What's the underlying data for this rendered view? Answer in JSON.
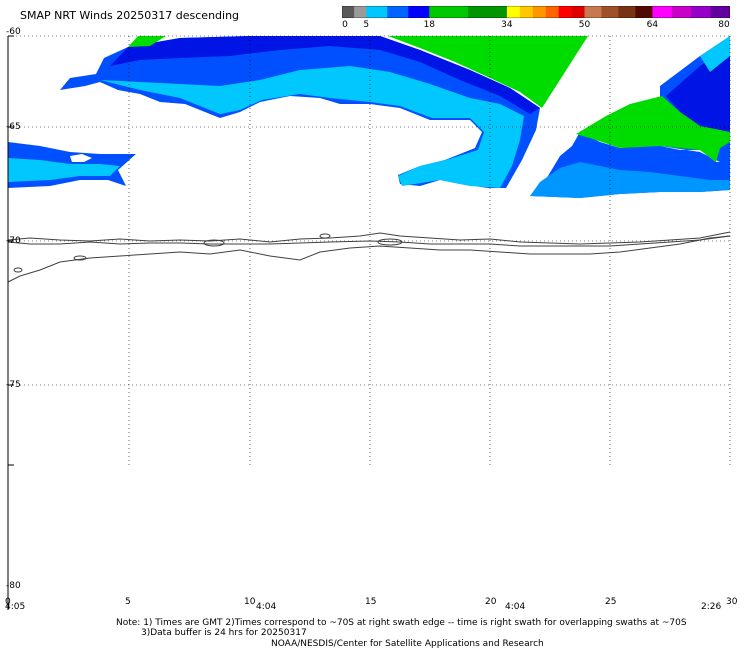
{
  "title": "SMAP NRT Winds  20250317 descending",
  "legend": {
    "ticks": [
      "0",
      "5",
      "18",
      "34",
      "50",
      "64",
      "80"
    ],
    "segments": [
      {
        "from": 0,
        "to": 5,
        "colors": [
          "#5a5a5a",
          "#9a9a9a"
        ]
      },
      {
        "from": 5,
        "to": 18,
        "colors": [
          "#00c8ff",
          "#0064ff",
          "#0000ff"
        ]
      },
      {
        "from": 18,
        "to": 34,
        "colors": [
          "#00c800",
          "#009600"
        ]
      },
      {
        "from": 34,
        "to": 50,
        "colors": [
          "#ffff00",
          "#ffc800",
          "#ff9600",
          "#ff6400",
          "#ff0000",
          "#dc0000"
        ]
      },
      {
        "from": 50,
        "to": 64,
        "colors": [
          "#c87850",
          "#a05028",
          "#783214",
          "#500a00"
        ]
      },
      {
        "from": 64,
        "to": 80,
        "colors": [
          "#ff00ff",
          "#c800c8",
          "#9600c8",
          "#6400a0"
        ]
      }
    ]
  },
  "axes": {
    "lon_ticks": [
      "0",
      "5",
      "10",
      "15",
      "20",
      "25",
      "30"
    ],
    "lat_ticks": [
      "-60",
      "-65",
      "-70",
      "-75",
      "-80"
    ],
    "time_labels": [
      "4:05",
      "4:04",
      "4:04",
      "2:26"
    ]
  },
  "wind_colors": {
    "light_blue": "#00c8ff",
    "mid_blue": "#0096ff",
    "blue": "#0050ff",
    "deep_blue": "#0014e6",
    "green": "#00dc00",
    "coast": "#404040"
  },
  "notes": [
    "Note: 1) Times are GMT 2)Times correspond to ~70S at right swath edge -- time is right swath for overlapping swaths at ~70S",
    "3)Data buffer is 24 hrs for 20250317",
    "NOAA/NESDIS/Center for Satellite Applications and Research"
  ]
}
